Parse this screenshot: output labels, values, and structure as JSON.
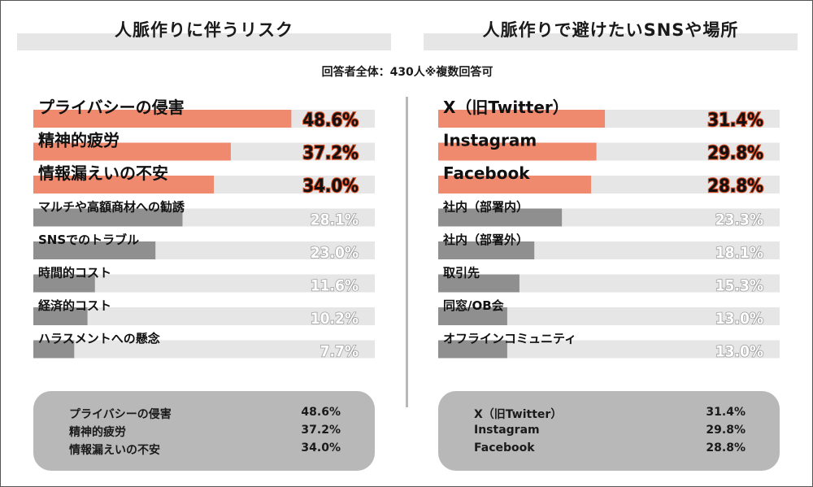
{
  "header": {
    "left_title": "人脈作りに伴うリスク",
    "right_title": "人脈作りで避けたいSNSや場所",
    "respondents": "回答者全体：430人※複数回答可"
  },
  "colors": {
    "highlight": "#ef8a6e",
    "normal": "#8f8f8f",
    "track": "#e6e6e6",
    "value_top": "#d94a20",
    "value_normal": "#a0a0a0"
  },
  "chart_data": [
    {
      "type": "bar",
      "orientation": "horizontal",
      "title": "人脈作りに伴うリスク",
      "unit": "%",
      "xlim": [
        0,
        100
      ],
      "categories": [
        "プライバシーの侵害",
        "精神的疲労",
        "情報漏えいの不安",
        "マルチや高額商材への勧誘",
        "SNSでのトラブル",
        "時間的コスト",
        "経済的コスト",
        "ハラスメントへの懸念"
      ],
      "values": [
        48.6,
        37.2,
        34.0,
        28.1,
        23.0,
        11.6,
        10.2,
        7.7
      ],
      "labels": [
        "48.6%",
        "37.2%",
        "34.0%",
        "28.1%",
        "23.0%",
        "11.6%",
        "10.2%",
        "7.7%"
      ],
      "highlighted_top": 3
    },
    {
      "type": "bar",
      "orientation": "horizontal",
      "title": "人脈作りで避けたいSNSや場所",
      "unit": "%",
      "xlim": [
        0,
        100
      ],
      "categories": [
        "X（旧Twitter）",
        "Instagram",
        "Facebook",
        "社内（部署内）",
        "社内（部署外）",
        "取引先",
        "同窓/OB会",
        "オフラインコミュニティ"
      ],
      "values": [
        31.4,
        29.8,
        28.8,
        23.3,
        18.1,
        15.3,
        13.0,
        13.0
      ],
      "labels": [
        "31.4%",
        "29.8%",
        "28.8%",
        "23.3%",
        "18.1%",
        "15.3%",
        "13.0%",
        "13.0%"
      ],
      "highlighted_top": 3
    }
  ],
  "summary": {
    "left": [
      {
        "label": "プライバシーの侵害",
        "value": "48.6%"
      },
      {
        "label": "精神的疲労",
        "value": "37.2%"
      },
      {
        "label": "情報漏えいの不安",
        "value": "34.0%"
      }
    ],
    "right": [
      {
        "label": "X（旧Twitter）",
        "value": "31.4%"
      },
      {
        "label": "Instagram",
        "value": "29.8%"
      },
      {
        "label": "Facebook",
        "value": "28.8%"
      }
    ]
  }
}
